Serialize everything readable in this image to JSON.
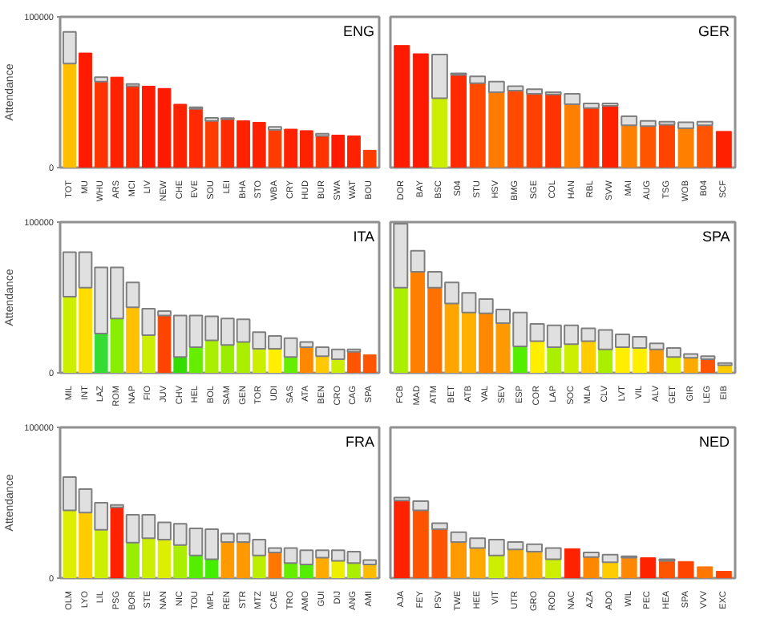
{
  "chart_data": [
    {
      "type": "bar",
      "title": "ENG",
      "ylabel": "Attendance",
      "stacked": true,
      "ylim": [
        0,
        100000
      ],
      "yticks": [
        0,
        100000
      ],
      "grid": false,
      "categories": [
        "TOT",
        "MU",
        "WHU",
        "ARS",
        "MCI",
        "LIV",
        "NEW",
        "CHE",
        "EVE",
        "SOU",
        "LEI",
        "BHA",
        "STO",
        "WBA",
        "CRY",
        "HUD",
        "BUR",
        "SWA",
        "WAT",
        "BOU"
      ],
      "series": [
        {
          "values": [
            69000,
            76000,
            57000,
            60000,
            54000,
            54000,
            52500,
            42000,
            39000,
            31000,
            32000,
            31000,
            30000,
            25000,
            25500,
            24500,
            21000,
            21500,
            21000,
            11500
          ],
          "colors": [
            "#ffbf00",
            "#ff1a00",
            "#ff3300",
            "#ff2200",
            "#ff2a00",
            "#ff1a00",
            "#ff1a00",
            "#ff2200",
            "#ff2a00",
            "#ff3c00",
            "#ff2a00",
            "#ff2200",
            "#ff2200",
            "#ff3c00",
            "#ff2200",
            "#ff2200",
            "#ff3300",
            "#ff1a00",
            "#ff2200",
            "#ff3c00"
          ]
        },
        {
          "values": [
            21000,
            null,
            3000,
            null,
            1500,
            null,
            null,
            null,
            1000,
            2000,
            800,
            null,
            null,
            2000,
            null,
            null,
            1500,
            null,
            null,
            null
          ],
          "color": "#e0e0e0"
        }
      ]
    },
    {
      "type": "bar",
      "title": "GER",
      "stacked": true,
      "ylim": [
        0,
        100000
      ],
      "yticks": [
        0,
        100000
      ],
      "grid": false,
      "tick_labels": "x",
      "categories": [
        "DOR",
        "BAY",
        "BSC",
        "S04",
        "STU",
        "HSV",
        "BMG",
        "SGE",
        "COL",
        "HAN",
        "RBL",
        "SVW",
        "MAI",
        "AUG",
        "TSG",
        "WOB",
        "B04",
        "SCF"
      ],
      "series": [
        {
          "values": [
            81000,
            75500,
            46000,
            61500,
            56000,
            50000,
            51000,
            49000,
            48500,
            42000,
            39500,
            41000,
            28000,
            27500,
            28500,
            26000,
            28000,
            24000
          ],
          "colors": [
            "#ff1a00",
            "#ff1a00",
            "#ccee00",
            "#ff2a00",
            "#ff4a00",
            "#ff7a00",
            "#ff4a00",
            "#ff4000",
            "#ff3300",
            "#ff8000",
            "#ff3300",
            "#ff2000",
            "#ff8000",
            "#ff5500",
            "#ff4400",
            "#ff8000",
            "#ff5500",
            "#ff2000"
          ]
        },
        {
          "values": [
            null,
            null,
            29000,
            1000,
            4500,
            7000,
            3000,
            3000,
            1500,
            7000,
            3000,
            1500,
            6000,
            3500,
            2000,
            4000,
            2500,
            null
          ],
          "color": "#e0e0e0"
        }
      ]
    },
    {
      "type": "bar",
      "title": "ITA",
      "ylabel": "Attendance",
      "stacked": true,
      "ylim": [
        0,
        100000
      ],
      "yticks": [
        0,
        100000
      ],
      "grid": false,
      "categories": [
        "MIL",
        "INT",
        "LAZ",
        "ROM",
        "NAP",
        "FIO",
        "JUV",
        "CHV",
        "HEL",
        "BOL",
        "SAM",
        "GEN",
        "TOR",
        "UDI",
        "SAS",
        "ATA",
        "BEN",
        "CRO",
        "CAG",
        "SPA"
      ],
      "series": [
        {
          "values": [
            50500,
            56500,
            26000,
            36000,
            43500,
            25000,
            38000,
            10500,
            17000,
            21500,
            18500,
            20500,
            16000,
            16000,
            10500,
            17000,
            11000,
            9000,
            14000,
            12000
          ],
          "colors": [
            "#ccee00",
            "#ffdd00",
            "#33dd33",
            "#88ee00",
            "#ffc000",
            "#ccee00",
            "#ff4400",
            "#33dd00",
            "#66ee00",
            "#aaee00",
            "#99ee00",
            "#aaee00",
            "#ccee00",
            "#ffee00",
            "#66ee00",
            "#ff8800",
            "#ffc800",
            "#ccee00",
            "#ff5500",
            "#ff5500"
          ]
        },
        {
          "values": [
            29500,
            23500,
            44000,
            34000,
            16500,
            17500,
            3000,
            27500,
            21000,
            16000,
            17500,
            15000,
            11000,
            8500,
            12500,
            3500,
            6000,
            6500,
            1500,
            null
          ],
          "color": "#e0e0e0"
        }
      ]
    },
    {
      "type": "bar",
      "title": "SPA",
      "stacked": true,
      "ylim": [
        0,
        100000
      ],
      "yticks": [
        0,
        100000
      ],
      "grid": false,
      "tick_labels": "x",
      "categories": [
        "FCB",
        "MAD",
        "ATM",
        "BET",
        "ATB",
        "VAL",
        "SEV",
        "ESP",
        "COR",
        "LAP",
        "SOC",
        "MLA",
        "CLV",
        "LVT",
        "VIL",
        "ALV",
        "GET",
        "GIR",
        "LEG",
        "EIB"
      ],
      "series": [
        {
          "values": [
            56500,
            67000,
            56500,
            46000,
            40000,
            39500,
            33000,
            17500,
            21000,
            17000,
            19000,
            21000,
            15500,
            17000,
            16500,
            15500,
            10500,
            10000,
            9000,
            5000
          ],
          "colors": [
            "#aaee00",
            "#ff8000",
            "#ff7000",
            "#ffa500",
            "#ffb000",
            "#ff8800",
            "#ff9900",
            "#55ee00",
            "#ffee00",
            "#aaee00",
            "#ccee00",
            "#ffcc00",
            "#aaee00",
            "#ffee00",
            "#ffee00",
            "#ff9900",
            "#ddee00",
            "#ffaa00",
            "#ff5500",
            "#ffcc00"
          ]
        },
        {
          "values": [
            42500,
            14000,
            10500,
            14000,
            13000,
            9500,
            9000,
            22500,
            11500,
            14500,
            12500,
            8500,
            13000,
            8500,
            7500,
            4000,
            6000,
            2500,
            2000,
            1500
          ],
          "color": "#e0e0e0"
        }
      ]
    },
    {
      "type": "bar",
      "title": "FRA",
      "ylabel": "Attendance",
      "stacked": true,
      "ylim": [
        0,
        100000
      ],
      "yticks": [
        0,
        100000
      ],
      "grid": false,
      "categories": [
        "OLM",
        "LYO",
        "LIL",
        "PSG",
        "BOR",
        "STE",
        "NAN",
        "NIC",
        "TOU",
        "MPL",
        "REN",
        "STR",
        "MTZ",
        "CAE",
        "TRO",
        "AMO",
        "GUI",
        "DIJ",
        "ANG",
        "AMI"
      ],
      "series": [
        {
          "values": [
            45000,
            43500,
            32000,
            47000,
            23500,
            26500,
            25500,
            22000,
            15000,
            12500,
            24000,
            24000,
            15000,
            17000,
            10000,
            9000,
            13500,
            11500,
            10000,
            9000
          ],
          "colors": [
            "#ddee00",
            "#ffcc00",
            "#ccee00",
            "#ff2200",
            "#99ee00",
            "#ccee00",
            "#ddee00",
            "#aaee00",
            "#55ee00",
            "#44ee00",
            "#ff9900",
            "#ff9900",
            "#bbee00",
            "#ff7700",
            "#66ee00",
            "#55ee00",
            "#ffaa00",
            "#eeee00",
            "#aaee00",
            "#ffbb00"
          ]
        },
        {
          "values": [
            22000,
            15500,
            18000,
            1500,
            18500,
            15500,
            11500,
            14000,
            18000,
            20000,
            5500,
            5500,
            10500,
            3000,
            10000,
            9500,
            5000,
            7000,
            7500,
            3000
          ],
          "color": "#e0e0e0"
        }
      ]
    },
    {
      "type": "bar",
      "title": "NED",
      "stacked": true,
      "ylim": [
        0,
        100000
      ],
      "yticks": [
        0,
        100000
      ],
      "grid": false,
      "tick_labels": "x",
      "categories": [
        "AJA",
        "FEY",
        "PSV",
        "TWE",
        "HEE",
        "VIT",
        "UTR",
        "GRO",
        "ROD",
        "NAC",
        "AZA",
        "ADO",
        "WIL",
        "PEC",
        "HEA",
        "SPA",
        "VVV",
        "EXC"
      ],
      "series": [
        {
          "values": [
            51500,
            45000,
            32500,
            24000,
            20000,
            15000,
            19000,
            17500,
            12500,
            19500,
            14000,
            10500,
            13500,
            13500,
            11500,
            11000,
            7500,
            4500
          ],
          "colors": [
            "#ff2200",
            "#ff5500",
            "#ff5500",
            "#ff9900",
            "#ffaa00",
            "#ccee00",
            "#ffaa00",
            "#ffaa00",
            "#ccee00",
            "#ff2200",
            "#ff8800",
            "#ffcc00",
            "#ff8800",
            "#ff2200",
            "#ff5500",
            "#ff4400",
            "#ff7700",
            "#ff4400"
          ]
        },
        {
          "values": [
            2000,
            6000,
            4000,
            6500,
            6500,
            10500,
            5000,
            5000,
            7500,
            null,
            3000,
            5000,
            1000,
            null,
            1000,
            null,
            null,
            null
          ],
          "color": "#e0e0e0"
        }
      ]
    }
  ]
}
